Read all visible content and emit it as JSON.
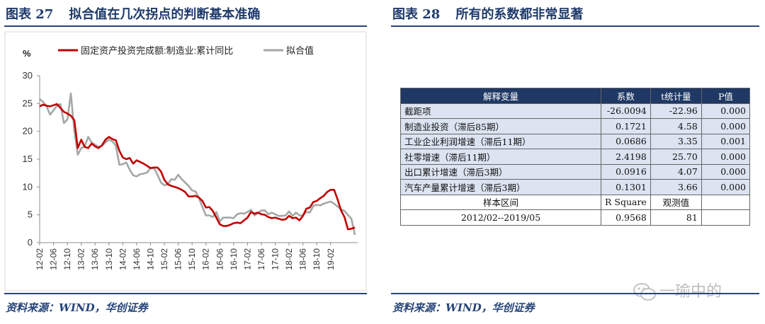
{
  "left_figure": {
    "number": "图表 27",
    "title": "拟合值在几次拐点的判断基本准确",
    "source": "资料来源：WIND，华创证券"
  },
  "right_figure": {
    "number": "图表 28",
    "title": "所有的系数都非常显著",
    "source": "资料来源：WIND，华创证券"
  },
  "watermark": {
    "text": "一瑜中的",
    "icon": "wechat-icon"
  },
  "chart_data": {
    "type": "line",
    "title": "",
    "ylabel": "%",
    "xlabel": "",
    "ylim": [
      0,
      30
    ],
    "yticks": [
      0,
      5,
      10,
      15,
      20,
      25,
      30
    ],
    "xticks": [
      "12-02",
      "12-06",
      "12-10",
      "13-02",
      "13-06",
      "13-10",
      "14-02",
      "14-06",
      "14-10",
      "15-02",
      "15-06",
      "15-10",
      "16-02",
      "16-06",
      "16-10",
      "17-02",
      "17-06",
      "17-10",
      "18-02",
      "18-06",
      "18-10",
      "19-02"
    ],
    "x_start": "2012-02",
    "x_end": "2019-05",
    "grid": false,
    "legend_position": "top",
    "series": [
      {
        "name": "固定资产投资完成额:制造业:累计同比",
        "color": "#c00000",
        "values": [
          24.5,
          24.8,
          24.6,
          24.5,
          24.7,
          24.9,
          24.2,
          23.5,
          23.2,
          22.8,
          22.0,
          17.0,
          18.5,
          17.2,
          17.0,
          17.8,
          17.3,
          17.0,
          17.5,
          18.5,
          19.0,
          18.6,
          18.4,
          16.5,
          15.3,
          15.0,
          15.2,
          14.2,
          14.8,
          14.5,
          14.2,
          13.8,
          13.4,
          13.5,
          13.5,
          12.8,
          11.3,
          10.5,
          10.2,
          10.0,
          9.8,
          9.5,
          9.1,
          8.3,
          8.3,
          8.4,
          8.1,
          7.5,
          6.3,
          6.4,
          5.7,
          4.5,
          3.3,
          3.0,
          3.0,
          3.2,
          3.5,
          3.6,
          3.5,
          4.0,
          4.5,
          5.5,
          5.2,
          5.4,
          5.1,
          5.0,
          4.6,
          4.4,
          4.5,
          4.3,
          4.1,
          4.2,
          4.8,
          4.4,
          4.5,
          4.0,
          4.8,
          6.1,
          6.3,
          7.3,
          7.5,
          8.0,
          8.4,
          9.1,
          9.5,
          9.5,
          7.8,
          5.8,
          4.6,
          2.4,
          2.5,
          2.7
        ],
        "note": "monthly values estimated from gridlines"
      },
      {
        "name": "拟合值",
        "color": "#a6a6a6",
        "values": [
          25.8,
          25.3,
          24.5,
          23.0,
          23.8,
          24.6,
          24.9,
          21.5,
          22.1,
          26.8,
          20.2,
          15.8,
          17.0,
          17.3,
          19.0,
          18.0,
          17.6,
          17.2,
          17.4,
          18.0,
          18.5,
          18.2,
          17.4,
          14.0,
          14.1,
          14.4,
          13.1,
          12.1,
          11.9,
          12.3,
          12.4,
          12.6,
          13.4,
          13.4,
          12.2,
          10.8,
          10.3,
          10.5,
          11.4,
          11.3,
          12.2,
          11.4,
          10.8,
          10.2,
          9.4,
          9.2,
          8.0,
          6.4,
          4.9,
          4.9,
          4.6,
          5.5,
          3.8,
          4.5,
          4.5,
          4.5,
          4.4,
          5.1,
          5.3,
          5.2,
          5.5,
          5.9,
          4.9,
          5.3,
          5.8,
          5.8,
          5.1,
          5.4,
          5.1,
          4.8,
          4.8,
          4.9,
          5.6,
          4.8,
          5.4,
          4.9,
          4.9,
          5.5,
          5.4,
          6.6,
          6.8,
          6.7,
          7.0,
          7.2,
          7.4,
          7.0,
          6.5,
          6.0,
          5.7,
          5.0,
          4.3,
          1.4
        ],
        "note": "monthly values estimated from gridlines"
      }
    ]
  },
  "table": {
    "headers": [
      "解释变量",
      "系数",
      "t统计量",
      "P值"
    ],
    "rows": [
      [
        "截距项",
        "-26.0094",
        "-22.96",
        "0.000"
      ],
      [
        "制造业投资（滞后85期）",
        "0.1721",
        "4.58",
        "0.000"
      ],
      [
        "工业企业利润增速（滞后11期）",
        "0.0686",
        "3.35",
        "0.001"
      ],
      [
        "社零增速（滞后11期）",
        "2.4198",
        "25.70",
        "0.000"
      ],
      [
        "出口累计增速（滞后3期）",
        "0.0916",
        "4.07",
        "0.000"
      ],
      [
        "汽车产量累计增速（滞后3期）",
        "0.1301",
        "3.66",
        "0.000"
      ]
    ],
    "footer": [
      [
        "样本区间",
        "R Square",
        "观测值",
        ""
      ],
      [
        "2012/02--2019/05",
        "0.9568",
        "81",
        ""
      ]
    ]
  }
}
